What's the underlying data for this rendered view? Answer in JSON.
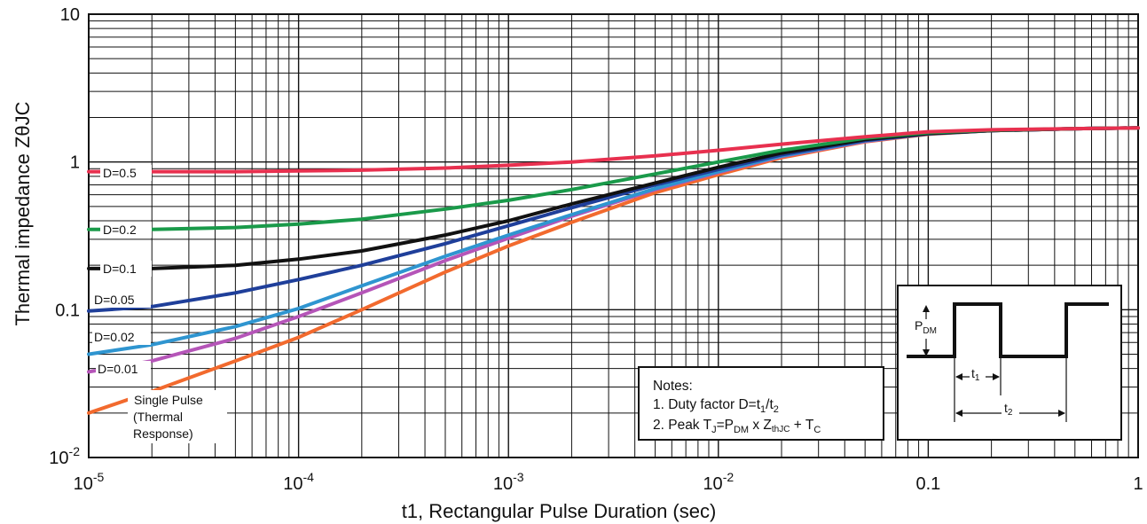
{
  "chart_data": {
    "type": "line",
    "xlabel": "t1, Rectangular Pulse Duration (sec)",
    "ylabel": "Thermal impedance ZθJC",
    "xscale": "log",
    "yscale": "log",
    "xlim": [
      1e-05,
      1
    ],
    "ylim": [
      0.01,
      10
    ],
    "grid": true,
    "x_tick_labels": [
      {
        "x": 1e-05,
        "base": "10",
        "exp": "-5"
      },
      {
        "x": 0.0001,
        "base": "10",
        "exp": "-4"
      },
      {
        "x": 0.001,
        "base": "10",
        "exp": "-3"
      },
      {
        "x": 0.01,
        "base": "10",
        "exp": "-2"
      },
      {
        "x": 0.1,
        "base": "0.1",
        "exp": ""
      },
      {
        "x": 1,
        "base": "1",
        "exp": ""
      }
    ],
    "y_tick_labels": [
      {
        "y": 10,
        "base": "10",
        "exp": ""
      },
      {
        "y": 1,
        "base": "1",
        "exp": ""
      },
      {
        "y": 0.1,
        "base": "0.1",
        "exp": ""
      },
      {
        "y": 0.01,
        "base": "10",
        "exp": "-2"
      }
    ],
    "series": [
      {
        "name": "D=0.5",
        "color": "#e8304f",
        "x": [
          1e-05,
          2e-05,
          5e-05,
          0.0001,
          0.0002,
          0.0005,
          0.001,
          0.002,
          0.005,
          0.01,
          0.02,
          0.05,
          0.1,
          0.2,
          0.5,
          1
        ],
        "y": [
          0.86,
          0.86,
          0.86,
          0.87,
          0.88,
          0.91,
          0.95,
          1.0,
          1.1,
          1.2,
          1.32,
          1.48,
          1.6,
          1.65,
          1.68,
          1.7
        ]
      },
      {
        "name": "D=0.2",
        "color": "#1a9a4a",
        "x": [
          1e-05,
          2e-05,
          5e-05,
          0.0001,
          0.0002,
          0.0005,
          0.001,
          0.002,
          0.005,
          0.01,
          0.02,
          0.05,
          0.1,
          0.2,
          0.5,
          1
        ],
        "y": [
          0.35,
          0.35,
          0.36,
          0.38,
          0.41,
          0.48,
          0.55,
          0.65,
          0.83,
          1.0,
          1.2,
          1.45,
          1.58,
          1.64,
          1.68,
          1.7
        ]
      },
      {
        "name": "D=0.1",
        "color": "#111111",
        "x": [
          1e-05,
          2e-05,
          5e-05,
          0.0001,
          0.0002,
          0.0005,
          0.001,
          0.002,
          0.005,
          0.01,
          0.02,
          0.05,
          0.1,
          0.2,
          0.5,
          1
        ],
        "y": [
          0.19,
          0.19,
          0.2,
          0.22,
          0.25,
          0.32,
          0.4,
          0.52,
          0.72,
          0.92,
          1.15,
          1.42,
          1.56,
          1.63,
          1.68,
          1.7
        ]
      },
      {
        "name": "D=0.05",
        "color": "#1f3f9a",
        "x": [
          1e-05,
          2e-05,
          5e-05,
          0.0001,
          0.0002,
          0.0005,
          0.001,
          0.002,
          0.005,
          0.01,
          0.02,
          0.05,
          0.1,
          0.2,
          0.5,
          1
        ],
        "y": [
          0.098,
          0.105,
          0.13,
          0.16,
          0.2,
          0.28,
          0.37,
          0.49,
          0.7,
          0.89,
          1.12,
          1.4,
          1.55,
          1.63,
          1.68,
          1.7
        ]
      },
      {
        "name": "D=0.02",
        "color": "#2f95d0",
        "x": [
          1e-05,
          2e-05,
          5e-05,
          0.0001,
          0.0002,
          0.0005,
          0.001,
          0.002,
          0.005,
          0.01,
          0.02,
          0.05,
          0.1,
          0.2,
          0.5,
          1
        ],
        "y": [
          0.05,
          0.058,
          0.077,
          0.102,
          0.145,
          0.23,
          0.32,
          0.44,
          0.66,
          0.86,
          1.1,
          1.39,
          1.55,
          1.63,
          1.68,
          1.7
        ]
      },
      {
        "name": "D=0.01",
        "color": "#b555b8",
        "x": [
          1e-05,
          2e-05,
          5e-05,
          0.0001,
          0.0002,
          0.0005,
          0.001,
          0.002,
          0.005,
          0.01,
          0.02,
          0.05,
          0.1,
          0.2,
          0.5,
          1
        ],
        "y": [
          0.038,
          0.045,
          0.064,
          0.09,
          0.13,
          0.215,
          0.305,
          0.43,
          0.65,
          0.85,
          1.09,
          1.38,
          1.55,
          1.63,
          1.68,
          1.7
        ]
      },
      {
        "name": "Single Pulse (Thermal Response)",
        "color": "#f26a2e",
        "x": [
          1e-05,
          2e-05,
          5e-05,
          0.0001,
          0.0002,
          0.0005,
          0.001,
          0.002,
          0.005,
          0.01,
          0.02,
          0.05,
          0.1,
          0.2,
          0.5,
          1
        ],
        "y": [
          0.02,
          0.028,
          0.045,
          0.065,
          0.1,
          0.18,
          0.27,
          0.39,
          0.62,
          0.82,
          1.07,
          1.37,
          1.54,
          1.63,
          1.68,
          1.7
        ]
      }
    ],
    "annotations": {
      "notes_title": "Notes:",
      "note1_prefix": "1.  Duty factor D=t",
      "note1_sub1": "1",
      "note1_mid": "/t",
      "note1_sub2": "2",
      "note2_prefix": "2.  Peak T",
      "note2_subJ": "J",
      "note2_eq": "=P",
      "note2_subDM": "DM",
      "note2_x": " x Z",
      "note2_subthJC": "thJC",
      "note2_plus": " + T",
      "note2_subC": "C",
      "single_pulse_lines": [
        "Single Pulse",
        "(Thermal",
        "Response)"
      ],
      "inset_p": "P",
      "inset_p_sub": "DM",
      "inset_t1": "t",
      "inset_t1_sub": "1",
      "inset_t2": "t",
      "inset_t2_sub": "2"
    }
  }
}
